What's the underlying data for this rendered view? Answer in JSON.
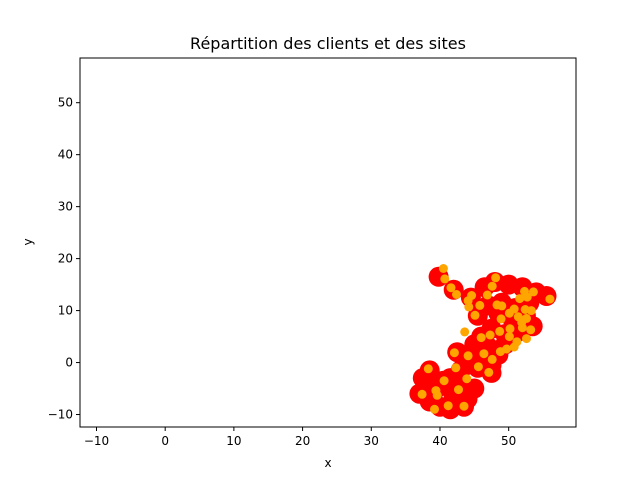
{
  "chart_data": {
    "type": "scatter",
    "title": "Répartition des clients et des sites",
    "xlabel": "x",
    "ylabel": "y",
    "xlim": [
      -12.4,
      59.8
    ],
    "ylim": [
      -12.4,
      58.6
    ],
    "x_ticks": [
      -10,
      0,
      10,
      20,
      30,
      40,
      50
    ],
    "y_ticks": [
      -10,
      0,
      10,
      20,
      30,
      40,
      50
    ],
    "x_tick_labels": [
      "−10",
      "0",
      "10",
      "20",
      "30",
      "40",
      "50"
    ],
    "y_tick_labels": [
      "−10",
      "0",
      "10",
      "20",
      "30",
      "40",
      "50"
    ],
    "grid": false,
    "legend": "none",
    "series": [
      {
        "marker": "large-disc",
        "color": "#ff0000",
        "points": [
          [
            39.8,
            16.5
          ],
          [
            42.0,
            14.0
          ],
          [
            44.5,
            12.5
          ],
          [
            46.5,
            14.5
          ],
          [
            48.0,
            15.5
          ],
          [
            50.0,
            15.0
          ],
          [
            52.0,
            14.5
          ],
          [
            54.0,
            13.5
          ],
          [
            55.5,
            12.8
          ],
          [
            53.0,
            11.5
          ],
          [
            51.0,
            10.5
          ],
          [
            49.0,
            11.5
          ],
          [
            47.0,
            11.0
          ],
          [
            45.5,
            9.0
          ],
          [
            48.5,
            9.5
          ],
          [
            50.5,
            8.5
          ],
          [
            52.5,
            9.0
          ],
          [
            53.5,
            7.0
          ],
          [
            51.5,
            6.0
          ],
          [
            49.5,
            5.5
          ],
          [
            47.5,
            6.5
          ],
          [
            46.0,
            5.0
          ],
          [
            45.0,
            3.5
          ],
          [
            47.0,
            3.0
          ],
          [
            49.5,
            3.5
          ],
          [
            48.5,
            1.5
          ],
          [
            46.5,
            1.0
          ],
          [
            44.0,
            1.5
          ],
          [
            42.5,
            2.0
          ],
          [
            44.5,
            0.0
          ],
          [
            47.5,
            -0.5
          ],
          [
            47.5,
            -2.0
          ],
          [
            45.5,
            -1.0
          ],
          [
            43.0,
            -1.5
          ],
          [
            41.5,
            -3.0
          ],
          [
            43.5,
            -4.5
          ],
          [
            40.5,
            -3.5
          ],
          [
            38.5,
            -1.5
          ],
          [
            37.5,
            -3.0
          ],
          [
            39.5,
            -5.0
          ],
          [
            37.0,
            -6.0
          ],
          [
            38.5,
            -7.5
          ],
          [
            40.0,
            -8.5
          ],
          [
            41.5,
            -9.0
          ],
          [
            43.5,
            -8.5
          ],
          [
            42.0,
            -6.5
          ],
          [
            44.0,
            -7.0
          ],
          [
            45.0,
            -5.0
          ]
        ]
      },
      {
        "marker": "small-disc",
        "color": "#ffa500",
        "points": [
          [
            40.5,
            18.1
          ],
          [
            41.6,
            14.4
          ],
          [
            40.7,
            16.1
          ],
          [
            42.4,
            13.1
          ],
          [
            44.1,
            11.9
          ],
          [
            44.6,
            12.9
          ],
          [
            46.9,
            13.0
          ],
          [
            47.6,
            14.7
          ],
          [
            48.1,
            16.3
          ],
          [
            52.3,
            13.7
          ],
          [
            53.6,
            13.6
          ],
          [
            56.0,
            12.2
          ],
          [
            52.7,
            12.6
          ],
          [
            51.6,
            12.3
          ],
          [
            50.8,
            10.3
          ],
          [
            49.0,
            10.9
          ],
          [
            48.3,
            11.1
          ],
          [
            45.8,
            11.0
          ],
          [
            44.2,
            10.7
          ],
          [
            45.1,
            9.1
          ],
          [
            48.9,
            8.4
          ],
          [
            50.1,
            9.5
          ],
          [
            51.4,
            8.8
          ],
          [
            52.4,
            10.2
          ],
          [
            53.3,
            10.0
          ],
          [
            52.6,
            8.5
          ],
          [
            51.9,
            7.7
          ],
          [
            52.0,
            6.7
          ],
          [
            53.2,
            6.3
          ],
          [
            50.2,
            6.5
          ],
          [
            48.7,
            6.0
          ],
          [
            47.3,
            5.3
          ],
          [
            46.0,
            4.8
          ],
          [
            50.1,
            5.0
          ],
          [
            51.2,
            4.0
          ],
          [
            52.6,
            4.6
          ],
          [
            50.8,
            3.0
          ],
          [
            49.7,
            2.6
          ],
          [
            48.8,
            2.1
          ],
          [
            46.4,
            1.7
          ],
          [
            43.6,
            5.9
          ],
          [
            47.6,
            0.6
          ],
          [
            44.1,
            1.3
          ],
          [
            42.1,
            1.9
          ],
          [
            45.6,
            -0.8
          ],
          [
            47.1,
            -1.9
          ],
          [
            42.3,
            -1.0
          ],
          [
            43.9,
            -3.1
          ],
          [
            40.6,
            -3.5
          ],
          [
            38.3,
            -1.2
          ],
          [
            42.7,
            -5.2
          ],
          [
            39.4,
            -5.4
          ],
          [
            37.4,
            -6.1
          ],
          [
            39.6,
            -6.3
          ],
          [
            39.2,
            -9.0
          ],
          [
            41.2,
            -8.3
          ],
          [
            43.5,
            -8.4
          ]
        ]
      }
    ]
  }
}
